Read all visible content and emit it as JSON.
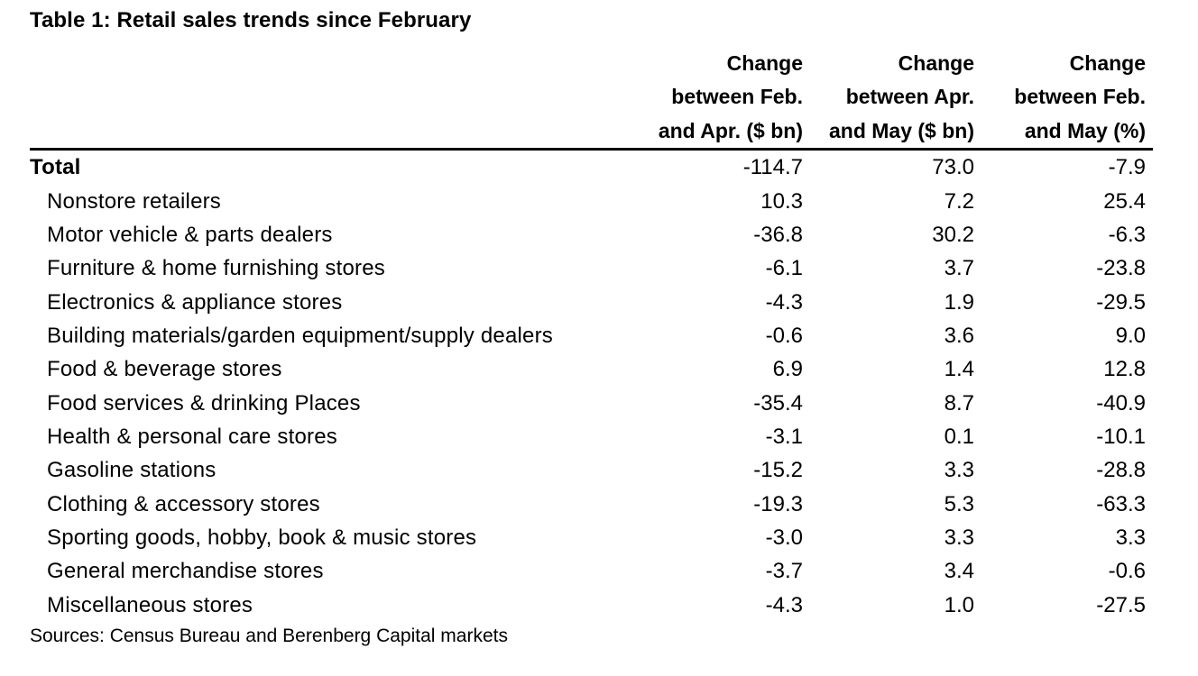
{
  "chart_data": {
    "type": "table",
    "title": "Table 1: Retail sales trends since February",
    "columns": [
      {
        "label": "Change between Feb. and Apr. ($ bn)",
        "lines": [
          "Change",
          "between Feb.",
          "and Apr. ($ bn)"
        ]
      },
      {
        "label": "Change between Apr. and May ($ bn)",
        "lines": [
          "Change",
          "between Apr.",
          "and May ($ bn)"
        ]
      },
      {
        "label": "Change between Feb. and May (%)",
        "lines": [
          "Change",
          "between Feb.",
          "and May (%)"
        ]
      }
    ],
    "rows": [
      {
        "label": "Total",
        "bold": true,
        "values": [
          -114.7,
          73.0,
          -7.9
        ]
      },
      {
        "label": "Nonstore retailers",
        "values": [
          10.3,
          7.2,
          25.4
        ]
      },
      {
        "label": "Motor vehicle & parts dealers",
        "values": [
          -36.8,
          30.2,
          -6.3
        ]
      },
      {
        "label": "Furniture & home furnishing stores",
        "values": [
          -6.1,
          3.7,
          -23.8
        ]
      },
      {
        "label": "Electronics & appliance stores",
        "values": [
          -4.3,
          1.9,
          -29.5
        ]
      },
      {
        "label": "Building materials/garden equipment/supply dealers",
        "values": [
          -0.6,
          3.6,
          9.0
        ]
      },
      {
        "label": "Food & beverage stores",
        "values": [
          6.9,
          1.4,
          12.8
        ]
      },
      {
        "label": "Food services & drinking Places",
        "values": [
          -35.4,
          8.7,
          -40.9
        ]
      },
      {
        "label": "Health & personal care stores",
        "values": [
          -3.1,
          0.1,
          -10.1
        ]
      },
      {
        "label": "Gasoline stations",
        "values": [
          -15.2,
          3.3,
          -28.8
        ]
      },
      {
        "label": "Clothing & accessory stores",
        "values": [
          -19.3,
          5.3,
          -63.3
        ]
      },
      {
        "label": "Sporting goods, hobby, book & music stores",
        "values": [
          -3.0,
          3.3,
          3.3
        ]
      },
      {
        "label": "General merchandise stores",
        "values": [
          -3.7,
          3.4,
          -0.6
        ]
      },
      {
        "label": "Miscellaneous stores",
        "values": [
          -4.3,
          1.0,
          -27.5
        ]
      }
    ],
    "source": "Sources: Census Bureau and Berenberg Capital markets",
    "value_format": "one-decimal",
    "layout": {
      "grid": false,
      "header_rule": "thick",
      "text_color": "#000000",
      "background": "#ffffff"
    }
  }
}
